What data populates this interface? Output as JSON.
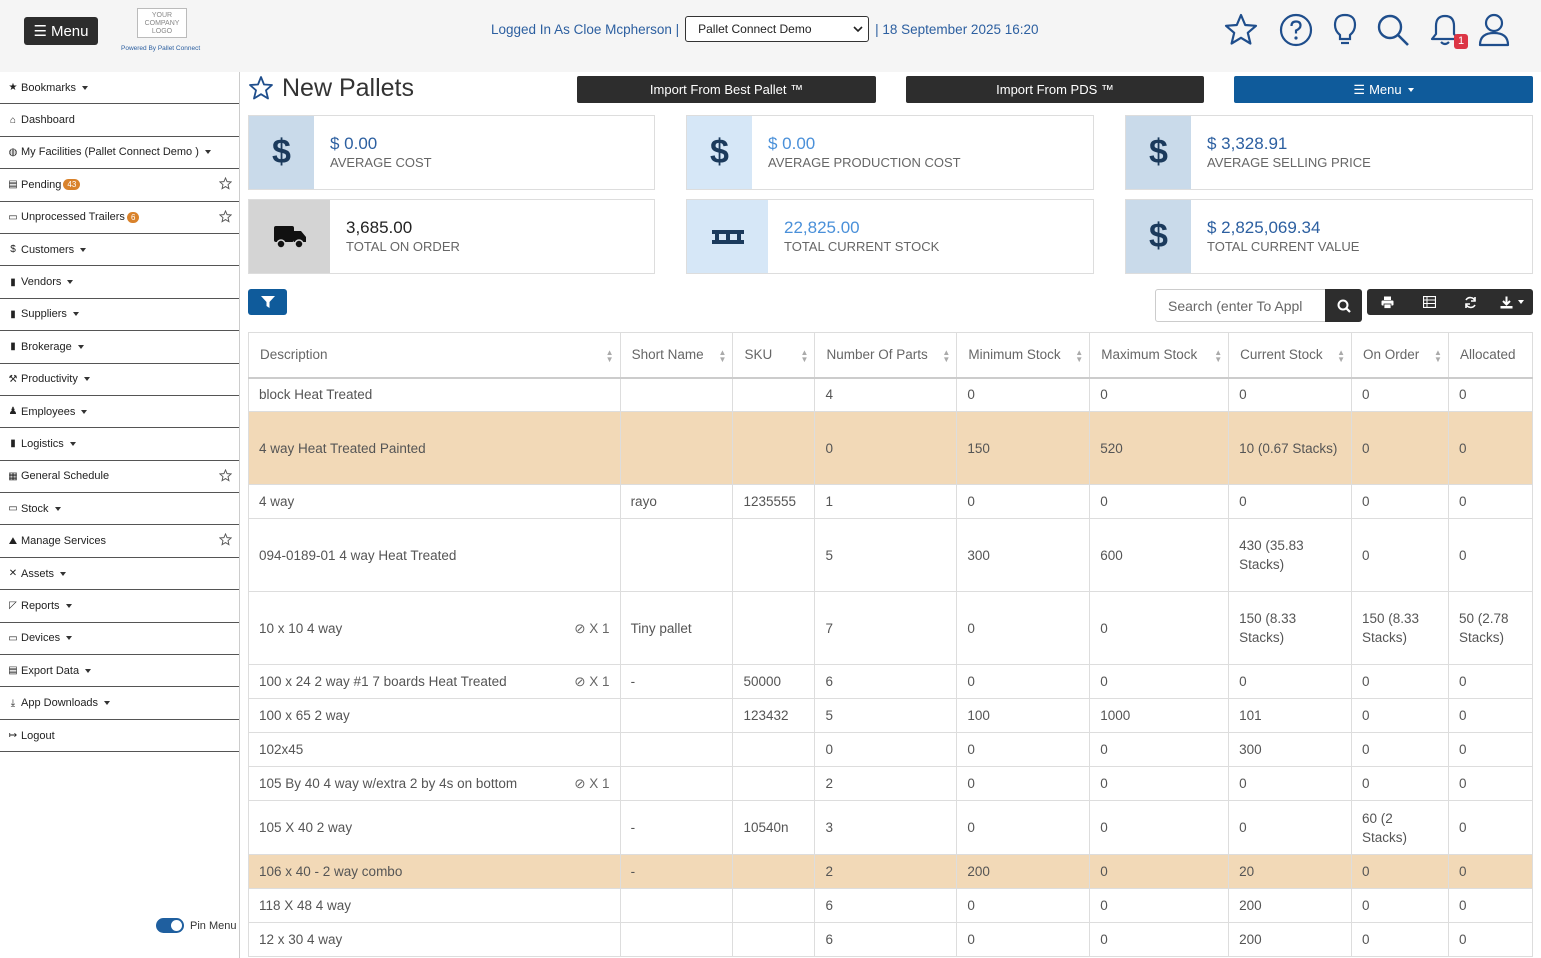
{
  "topbar": {
    "menu_label": "Menu",
    "logo_text": "YOUR COMPANY LOGO",
    "powered_by": "Powered By Pallet Connect",
    "logged_in": "Logged In As Cloe Mcpherson |",
    "facility_select": "Pallet Connect Demo",
    "datetime": "| 18 September 2025 16:20",
    "notification_count": "1"
  },
  "sidebar": {
    "items": [
      {
        "label": "Bookmarks",
        "icon": "star-icon",
        "caret": true
      },
      {
        "label": "Dashboard",
        "icon": "home-icon"
      },
      {
        "label": "My Facilities (Pallet Connect Demo )",
        "icon": "globe-icon",
        "caret": true
      },
      {
        "label": "Pending",
        "icon": "clipboard-icon",
        "badge": "43",
        "star": true
      },
      {
        "label": "Unprocessed Trailers",
        "icon": "trailer-icon",
        "badge": "6",
        "star": true
      },
      {
        "label": "Customers",
        "icon": "dollar-icon",
        "caret": true
      },
      {
        "label": "Vendors",
        "icon": "truck-icon",
        "caret": true
      },
      {
        "label": "Suppliers",
        "icon": "truck-icon",
        "caret": true
      },
      {
        "label": "Brokerage",
        "icon": "truck-icon",
        "caret": true
      },
      {
        "label": "Productivity",
        "icon": "hammer-icon",
        "caret": true
      },
      {
        "label": "Employees",
        "icon": "person-icon",
        "caret": true
      },
      {
        "label": "Logistics",
        "icon": "truck-icon",
        "caret": true
      },
      {
        "label": "General Schedule",
        "icon": "calendar-icon",
        "star": true
      },
      {
        "label": "Stock",
        "icon": "pallet-icon",
        "caret": true
      },
      {
        "label": "Manage Services",
        "icon": "service-icon",
        "star": true
      },
      {
        "label": "Assets",
        "icon": "tools-icon",
        "caret": true
      },
      {
        "label": "Reports",
        "icon": "chart-icon",
        "caret": true
      },
      {
        "label": "Devices",
        "icon": "monitor-icon",
        "caret": true
      },
      {
        "label": "Export Data",
        "icon": "export-icon",
        "caret": true
      },
      {
        "label": "App Downloads",
        "icon": "download-icon",
        "caret": true
      },
      {
        "label": "Logout",
        "icon": "logout-icon"
      }
    ],
    "pin_label": "Pin Menu"
  },
  "page": {
    "title": "New Pallets",
    "import_best": "Import From Best Pallet ™",
    "import_pds": "Import From PDS ™",
    "menu_label": "Menu"
  },
  "cards": [
    {
      "value": "$ 0.00",
      "label": "AVERAGE COST",
      "icon": "dollar-icon",
      "value_color": "#2c5fa0"
    },
    {
      "value": "$ 0.00",
      "label": "AVERAGE PRODUCTION COST",
      "icon": "dollar-icon",
      "value_color": "#4a90d9"
    },
    {
      "value": "$ 3,328.91",
      "label": "AVERAGE SELLING PRICE",
      "icon": "dollar-icon",
      "value_color": "#2c5fa0"
    },
    {
      "value": "3,685.00",
      "label": "TOTAL ON ORDER",
      "icon": "truck-icon",
      "value_color": "#222222"
    },
    {
      "value": "22,825.00",
      "label": "TOTAL CURRENT STOCK",
      "icon": "pallet-icon",
      "value_color": "#4a90d9"
    },
    {
      "value": "$ 2,825,069.34",
      "label": "TOTAL CURRENT VALUE",
      "icon": "dollar-icon",
      "value_color": "#2c5fa0"
    }
  ],
  "search": {
    "placeholder": "Search (enter To Appl"
  },
  "table": {
    "columns": [
      "Description",
      "Short Name",
      "SKU",
      "Number Of Parts",
      "Minimum Stock",
      "Maximum Stock",
      "Current Stock",
      "On Order",
      "Allocated"
    ],
    "rows": [
      {
        "cells": [
          "block Heat Treated",
          "",
          "",
          "4",
          "0",
          "0",
          "0",
          "0",
          "0"
        ]
      },
      {
        "highlight": true,
        "cells": [
          "4 way Heat Treated Painted",
          "",
          "",
          "0",
          "150",
          "520",
          "10 (0.67 Stacks)",
          "0",
          "0"
        ]
      },
      {
        "cells": [
          "4 way",
          "rayo",
          "1235555",
          "1",
          "0",
          "0",
          "0",
          "0",
          "0"
        ]
      },
      {
        "cells": [
          "094-0189-01 4 way Heat Treated",
          "",
          "",
          "5",
          "300",
          "600",
          "430 (35.83 Stacks)",
          "0",
          "0"
        ]
      },
      {
        "attach": "X 1",
        "cells": [
          "10 x 10 4 way",
          "Tiny pallet",
          "",
          "7",
          "0",
          "0",
          "150 (8.33 Stacks)",
          "150 (8.33 Stacks)",
          "50 (2.78 Stacks)"
        ]
      },
      {
        "attach": "X 1",
        "cells": [
          "100 x 24 2 way #1 7 boards Heat Treated",
          "-",
          "50000",
          "6",
          "0",
          "0",
          "0",
          "0",
          "0"
        ]
      },
      {
        "cells": [
          "100 x 65 2 way",
          "",
          "123432",
          "5",
          "100",
          "1000",
          "101",
          "0",
          "0"
        ]
      },
      {
        "cells": [
          "102x45",
          "",
          "",
          "0",
          "0",
          "0",
          "300",
          "0",
          "0"
        ]
      },
      {
        "attach": "X 1",
        "cells": [
          "105 By 40 4 way w/extra 2 by 4s on bottom",
          "",
          "",
          "2",
          "0",
          "0",
          "0",
          "0",
          "0"
        ]
      },
      {
        "cells": [
          "105 X 40 2 way",
          "-",
          "10540n",
          "3",
          "0",
          "0",
          "0",
          "60 (2 Stacks)",
          "0"
        ]
      },
      {
        "highlight": true,
        "cells": [
          "106 x 40 - 2 way combo",
          "-",
          "",
          "2",
          "200",
          "0",
          "20",
          "0",
          "0"
        ]
      },
      {
        "cells": [
          "118 X 48 4 way",
          "",
          "",
          "6",
          "0",
          "0",
          "200",
          "0",
          "0"
        ]
      },
      {
        "cells": [
          "12 x 30 4 way",
          "",
          "",
          "6",
          "0",
          "0",
          "200",
          "0",
          "0"
        ]
      }
    ]
  }
}
